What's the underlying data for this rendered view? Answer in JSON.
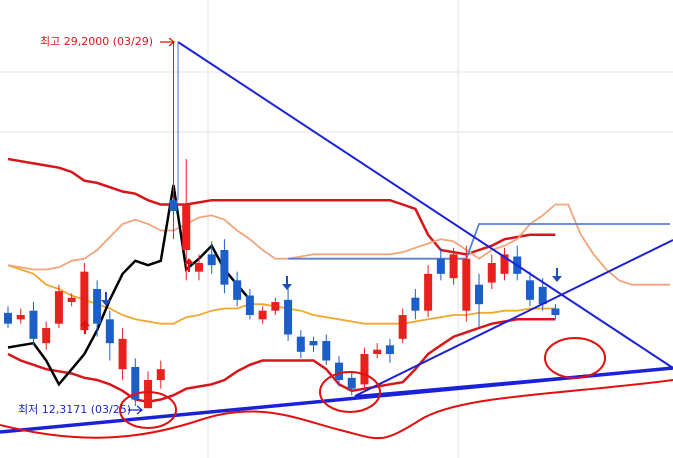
{
  "chart_data": {
    "type": "candlestick",
    "annotations": [
      "최고 29,2000 (03/29)",
      "최저 12,3171 (03/25)"
    ],
    "ylim": [
      10,
      31.14
    ],
    "up_color": "#e8211f",
    "down_color": "#1c5fc8",
    "open": [
      16.7,
      16.4,
      16.8,
      15.3,
      16.2,
      17.2,
      15.9,
      17.8,
      16.4,
      14.1,
      14.2,
      12.3,
      13.6,
      21.9,
      19.6,
      18.6,
      19.4,
      19.6,
      18.2,
      17.5,
      16.4,
      16.8,
      17.3,
      15.6,
      15.4,
      15.4,
      14.4,
      13.7,
      13.4,
      14.8,
      15.2,
      15.5,
      17.4,
      16.8,
      19.2,
      18.3,
      16.8,
      18.0,
      18.1,
      18.5,
      19.3,
      18.2,
      17.9,
      16.9,
      null,
      null,
      null,
      null,
      null,
      null,
      null,
      null,
      null
    ],
    "high": [
      17.0,
      16.9,
      17.2,
      16.3,
      18.0,
      17.6,
      19.0,
      18.2,
      16.8,
      16.0,
      14.6,
      14.0,
      14.5,
      29.2,
      23.8,
      19.4,
      20.0,
      20.1,
      18.6,
      17.8,
      17.0,
      17.4,
      18.0,
      15.9,
      15.6,
      15.7,
      14.7,
      14.0,
      15.1,
      15.3,
      15.5,
      16.9,
      17.8,
      18.9,
      19.7,
      19.7,
      19.8,
      18.5,
      19.4,
      19.7,
      19.8,
      18.6,
      18.3,
      17.1,
      null,
      null,
      null,
      null,
      null,
      null,
      null,
      null,
      null
    ],
    "low": [
      16.0,
      16.2,
      15.2,
      15.0,
      16.0,
      17.0,
      15.7,
      15.6,
      14.5,
      13.6,
      12.4,
      12.3,
      13.2,
      20.1,
      18.2,
      18.2,
      18.5,
      17.6,
      17.0,
      16.4,
      16.2,
      16.6,
      15.4,
      14.6,
      14.9,
      14.3,
      13.3,
      12.9,
      13.2,
      14.6,
      14.4,
      15.3,
      16.4,
      16.5,
      18.2,
      18.0,
      16.3,
      16.0,
      17.8,
      18.2,
      18.2,
      17.0,
      16.8,
      16.4,
      null,
      null,
      null,
      null,
      null,
      null,
      null,
      null,
      null
    ],
    "close": [
      16.2,
      16.6,
      15.5,
      16.0,
      17.7,
      17.4,
      18.6,
      16.2,
      15.3,
      15.5,
      12.7,
      13.6,
      14.1,
      21.4,
      21.7,
      19.0,
      18.9,
      18.0,
      17.3,
      16.6,
      16.8,
      17.2,
      15.7,
      14.9,
      15.2,
      14.5,
      13.6,
      13.2,
      14.8,
      15.0,
      14.8,
      16.6,
      16.8,
      18.5,
      18.5,
      19.4,
      19.2,
      17.1,
      19.0,
      19.4,
      18.5,
      17.3,
      17.1,
      16.6,
      null,
      null,
      null,
      null,
      null,
      null,
      null,
      null,
      null
    ],
    "series": [
      {
        "color": "#d8141a",
        "values": [
          23.8,
          23.7,
          23.6,
          23.5,
          23.4,
          23.2,
          22.8,
          22.7,
          22.5,
          22.3,
          22.2,
          21.9,
          21.7,
          21.7,
          21.7,
          21.8,
          21.9,
          21.9,
          21.9,
          21.9,
          21.9,
          21.9,
          21.9,
          21.9,
          21.9,
          21.9,
          21.9,
          21.9,
          21.9,
          21.9,
          21.9,
          21.7,
          21.5,
          20.3,
          19.6,
          19.5,
          19.4,
          19.6,
          19.8,
          20.1,
          20.2,
          20.3,
          20.3,
          20.3,
          null,
          null,
          null,
          null,
          null,
          null,
          null,
          null,
          null
        ]
      },
      {
        "color": "#d8141a",
        "values": [
          14.8,
          14.5,
          14.3,
          14.1,
          14.0,
          13.9,
          13.7,
          13.6,
          13.4,
          13.1,
          12.7,
          12.6,
          12.7,
          12.9,
          13.2,
          13.3,
          13.4,
          13.6,
          14.0,
          14.3,
          14.5,
          14.5,
          14.5,
          14.5,
          14.5,
          14.1,
          13.4,
          13.1,
          13.2,
          13.3,
          13.4,
          13.5,
          14.1,
          14.8,
          15.2,
          15.6,
          15.8,
          16.0,
          16.2,
          16.3,
          16.4,
          16.4,
          16.4,
          16.4,
          null,
          null,
          null,
          null,
          null,
          null,
          null,
          null,
          null
        ]
      },
      {
        "color": "#f0a830",
        "values": [
          18.9,
          18.7,
          18.5,
          18.0,
          17.8,
          17.5,
          17.3,
          17.1,
          16.9,
          16.6,
          16.4,
          16.3,
          16.2,
          16.2,
          16.5,
          16.6,
          16.8,
          16.9,
          16.9,
          17.1,
          17.1,
          17.0,
          16.9,
          16.8,
          16.6,
          16.5,
          16.4,
          16.3,
          16.2,
          16.2,
          16.2,
          16.2,
          16.3,
          16.4,
          16.5,
          16.6,
          16.6,
          16.7,
          16.7,
          16.8,
          16.8,
          16.9,
          16.9,
          16.9,
          null,
          null,
          null,
          null,
          null,
          null,
          null,
          null,
          null
        ]
      },
      {
        "color": "#f2a57c",
        "values": [
          18.9,
          18.8,
          18.7,
          18.7,
          18.8,
          19.1,
          19.2,
          19.6,
          20.2,
          20.8,
          21.0,
          20.8,
          20.5,
          20.5,
          20.8,
          21.1,
          21.2,
          21.0,
          20.5,
          20.1,
          19.6,
          19.2,
          19.2,
          19.3,
          19.4,
          19.4,
          19.4,
          19.4,
          19.4,
          19.4,
          19.4,
          19.5,
          19.7,
          19.9,
          20.1,
          20.0,
          19.6,
          19.2,
          19.6,
          19.8,
          20.1,
          20.8,
          21.2,
          21.7,
          21.7,
          20.3,
          19.4,
          18.7,
          18.2,
          18.0,
          18.0,
          18.0,
          18.0
        ]
      },
      {
        "color": "#5b7fd6",
        "values": [
          null,
          null,
          null,
          null,
          null,
          null,
          null,
          null,
          null,
          null,
          null,
          null,
          null,
          null,
          null,
          null,
          null,
          null,
          null,
          null,
          null,
          null,
          19.2,
          19.2,
          19.2,
          19.2,
          19.2,
          19.2,
          19.2,
          19.2,
          19.2,
          19.2,
          19.2,
          19.2,
          19.2,
          19.2,
          19.2,
          20.8,
          20.8,
          20.8,
          20.8,
          20.8,
          20.8,
          20.8,
          20.8,
          20.8,
          20.8,
          20.8,
          20.8,
          20.8,
          20.8,
          20.8,
          20.8
        ]
      },
      {
        "color": "#000000",
        "values": [
          15.1,
          15.2,
          15.3,
          14.5,
          13.4,
          14.1,
          14.8,
          15.9,
          17.3,
          18.5,
          19.1,
          18.9,
          19.1,
          22.6,
          18.7,
          19.2,
          19.8,
          18.7,
          18.0,
          17.3,
          null,
          null,
          null,
          null,
          null,
          null,
          null,
          null,
          null,
          null,
          null,
          null,
          null,
          null,
          null,
          null,
          null,
          null,
          null,
          null,
          null,
          null,
          null,
          null,
          null,
          null,
          null,
          null,
          null,
          null,
          null,
          null,
          null
        ]
      }
    ]
  }
}
